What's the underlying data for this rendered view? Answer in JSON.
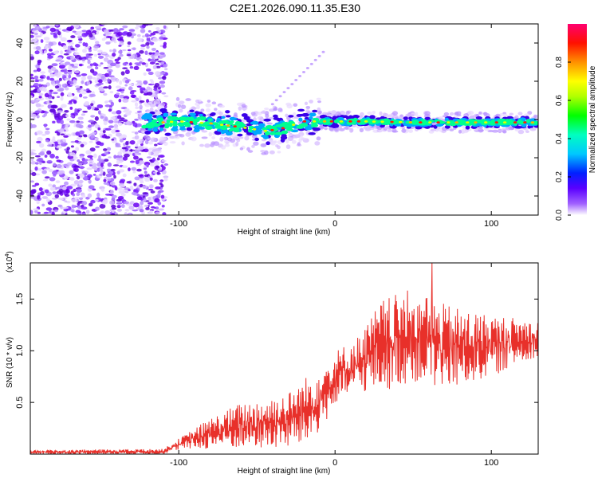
{
  "title": "C2E1.2026.090.11.35.E30",
  "chart_data": [
    {
      "type": "heatmap",
      "name": "spectrogram",
      "xlabel": "Height of straight line (km)",
      "ylabel": "Frequency (Hz)",
      "xlim": [
        -195,
        130
      ],
      "ylim": [
        -50,
        50
      ],
      "xticks": [
        -100,
        0,
        100
      ],
      "yticks": [
        -40,
        -20,
        0,
        20,
        40
      ],
      "colorbar": {
        "label": "Normalized spectral amplitude",
        "range": [
          0,
          1
        ],
        "ticks": [
          "0.0",
          "0.2",
          "0.4",
          "0.6",
          "0.8"
        ],
        "colors": [
          "#ffffff",
          "#7a00ff",
          "#0000ff",
          "#00ffff",
          "#00ff00",
          "#ffff00",
          "#ff8000",
          "#ff0000",
          "#ff00a0"
        ]
      },
      "noise_region_x": [
        -195,
        -108
      ],
      "ridge": [
        {
          "x": -120,
          "f": -2
        },
        {
          "x": -100,
          "f": -1
        },
        {
          "x": -80,
          "f": -2
        },
        {
          "x": -60,
          "f": -4
        },
        {
          "x": -45,
          "f": -6
        },
        {
          "x": -35,
          "f": -5
        },
        {
          "x": -20,
          "f": -1
        },
        {
          "x": 0,
          "f": -1
        },
        {
          "x": 20,
          "f": -1
        },
        {
          "x": 50,
          "f": -1.5
        },
        {
          "x": 80,
          "f": -1.5
        },
        {
          "x": 110,
          "f": -1.5
        },
        {
          "x": 130,
          "f": -1.5
        }
      ]
    },
    {
      "type": "line",
      "name": "snr",
      "xlabel": "Height of straight line (km)",
      "ylabel": "SNR (10 * v/v)",
      "y_exponent_label": "(x10^4)",
      "exp_base": "(x10",
      "exp_power": "4",
      "exp_close": ")",
      "xlim": [
        -195,
        130
      ],
      "ylim": [
        0,
        1.85
      ],
      "xticks": [
        -100,
        0,
        100
      ],
      "yticks": [
        0.5,
        1.0,
        1.5
      ],
      "ytick_labels": [
        "0.5",
        "1.0",
        "1.5"
      ],
      "color": "#e8302a",
      "envelope": [
        {
          "x": -195,
          "lo": 0.0,
          "hi": 0.04
        },
        {
          "x": -110,
          "lo": 0.0,
          "hi": 0.05
        },
        {
          "x": -100,
          "lo": 0.04,
          "hi": 0.15
        },
        {
          "x": -80,
          "lo": 0.05,
          "hi": 0.35
        },
        {
          "x": -60,
          "lo": 0.05,
          "hi": 0.5
        },
        {
          "x": -30,
          "lo": 0.05,
          "hi": 0.6
        },
        {
          "x": -15,
          "lo": 0.1,
          "hi": 0.8
        },
        {
          "x": 0,
          "lo": 0.45,
          "hi": 1.0
        },
        {
          "x": 15,
          "lo": 0.6,
          "hi": 1.15
        },
        {
          "x": 30,
          "lo": 0.6,
          "hi": 1.5
        },
        {
          "x": 50,
          "lo": 0.7,
          "hi": 1.6
        },
        {
          "x": 70,
          "lo": 0.6,
          "hi": 1.45
        },
        {
          "x": 100,
          "lo": 0.75,
          "hi": 1.35
        },
        {
          "x": 130,
          "lo": 0.95,
          "hi": 1.3
        }
      ],
      "peak": {
        "x": 62,
        "y": 1.85
      }
    }
  ]
}
